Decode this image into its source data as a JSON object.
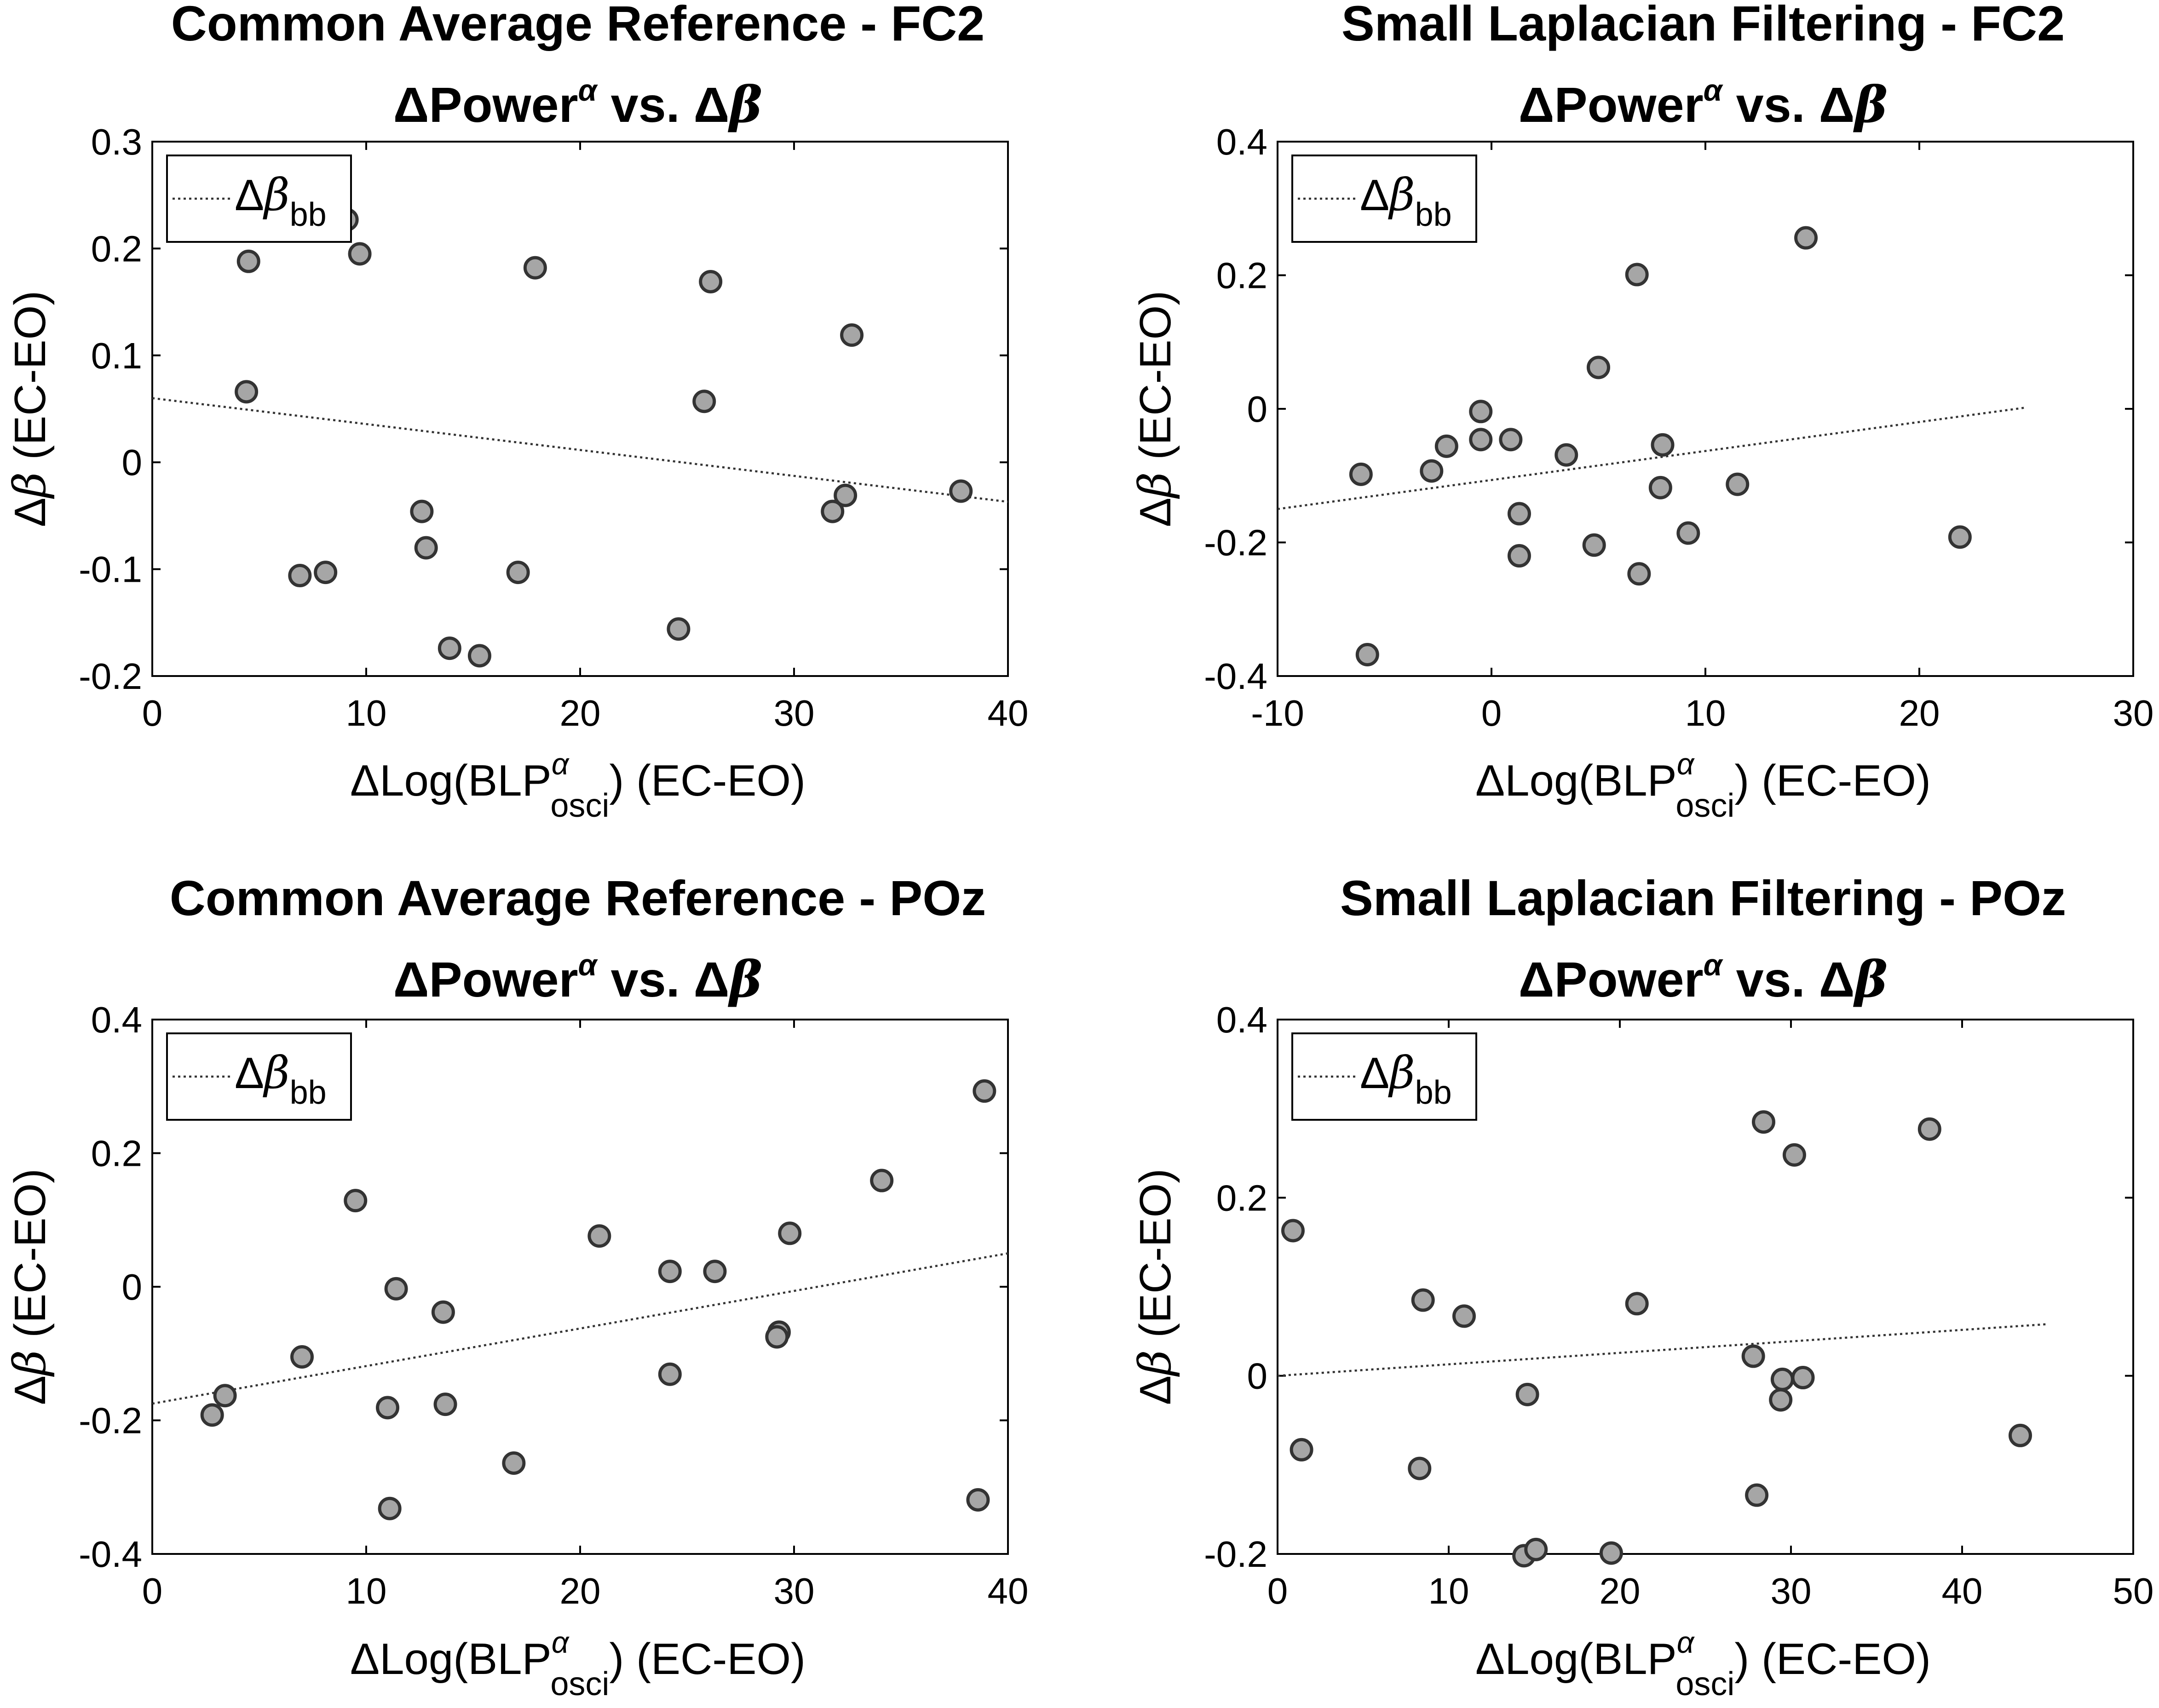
{
  "chart_data": [
    {
      "type": "scatter",
      "title_line1": "Common Average Reference - FC2",
      "title_line2": {
        "pre": "ΔPower",
        "sup": "α",
        "mid": " vs. Δ",
        "greek": "β"
      },
      "xlabel": {
        "pre": "ΔLog(BLP",
        "sup": "α",
        "sub": "osci",
        "post": ") (EC-EO)"
      },
      "ylabel": {
        "pre": "Δ",
        "greek": "β",
        "post": " (EC-EO)"
      },
      "legend": {
        "pre": "Δ",
        "greek": "β",
        "sub": "bb",
        "loc": "top-left"
      },
      "xlim": [
        0,
        40
      ],
      "ylim": [
        -0.2,
        0.3
      ],
      "xticks": [
        0,
        10,
        20,
        30,
        40
      ],
      "yticks": [
        -0.2,
        -0.1,
        0,
        0.1,
        0.2,
        0.3
      ],
      "xtick_labels": [
        "0",
        "10",
        "20",
        "30",
        "40"
      ],
      "ytick_labels": [
        "-0.2",
        "-0.1",
        "0",
        "0.1",
        "0.2",
        "0.3"
      ],
      "points": [
        [
          9.1,
          0.227
        ],
        [
          4.5,
          0.188
        ],
        [
          9.7,
          0.195
        ],
        [
          17.9,
          0.182
        ],
        [
          26.1,
          0.169
        ],
        [
          32.7,
          0.119
        ],
        [
          4.4,
          0.066
        ],
        [
          25.8,
          0.057
        ],
        [
          12.6,
          -0.046
        ],
        [
          12.8,
          -0.08
        ],
        [
          6.9,
          -0.106
        ],
        [
          8.1,
          -0.103
        ],
        [
          17.1,
          -0.103
        ],
        [
          13.9,
          -0.174
        ],
        [
          15.3,
          -0.181
        ],
        [
          24.6,
          -0.156
        ],
        [
          31.8,
          -0.046
        ],
        [
          32.4,
          -0.031
        ],
        [
          37.8,
          -0.027
        ]
      ],
      "fit_line": {
        "x": [
          0,
          40
        ],
        "y": [
          0.06,
          -0.037
        ]
      }
    },
    {
      "type": "scatter",
      "title_line1": "Small Laplacian Filtering - FC2",
      "title_line2": {
        "pre": "ΔPower",
        "sup": "α",
        "mid": " vs. Δ",
        "greek": "β"
      },
      "xlabel": {
        "pre": "ΔLog(BLP",
        "sup": "α",
        "sub": "osci",
        "post": ") (EC-EO)"
      },
      "ylabel": {
        "pre": "Δ",
        "greek": "β",
        "post": " (EC-EO)"
      },
      "legend": {
        "pre": "Δ",
        "greek": "β",
        "sub": "bb",
        "loc": "top-left"
      },
      "xlim": [
        -10,
        30
      ],
      "ylim": [
        -0.4,
        0.4
      ],
      "xticks": [
        -10,
        0,
        10,
        20,
        30
      ],
      "yticks": [
        -0.4,
        -0.2,
        0,
        0.2,
        0.4
      ],
      "xtick_labels": [
        "-10",
        "0",
        "10",
        "20",
        "30"
      ],
      "ytick_labels": [
        "-0.4",
        "-0.2",
        "0",
        "0.2",
        "0.4"
      ],
      "points": [
        [
          14.7,
          0.256
        ],
        [
          6.8,
          0.201
        ],
        [
          5.0,
          0.062
        ],
        [
          -0.5,
          -0.004
        ],
        [
          -0.5,
          -0.046
        ],
        [
          0.9,
          -0.046
        ],
        [
          -2.1,
          -0.056
        ],
        [
          -2.8,
          -0.093
        ],
        [
          -6.1,
          -0.098
        ],
        [
          3.5,
          -0.069
        ],
        [
          8.0,
          -0.054
        ],
        [
          7.9,
          -0.118
        ],
        [
          11.5,
          -0.113
        ],
        [
          1.3,
          -0.157
        ],
        [
          1.3,
          -0.22
        ],
        [
          4.8,
          -0.204
        ],
        [
          6.9,
          -0.247
        ],
        [
          9.2,
          -0.186
        ],
        [
          21.9,
          -0.192
        ],
        [
          -5.8,
          -0.368
        ]
      ],
      "fit_line": {
        "x": [
          -10,
          25
        ],
        "y": [
          -0.15,
          0.002
        ]
      }
    },
    {
      "type": "scatter",
      "title_line1": "Common Average Reference - POz",
      "title_line2": {
        "pre": "ΔPower",
        "sup": "α",
        "mid": " vs. Δ",
        "greek": "β"
      },
      "xlabel": {
        "pre": "ΔLog(BLP",
        "sup": "α",
        "sub": "osci",
        "post": ") (EC-EO)"
      },
      "ylabel": {
        "pre": "Δ",
        "greek": "β",
        "post": " (EC-EO)"
      },
      "legend": {
        "pre": "Δ",
        "greek": "β",
        "sub": "bb",
        "loc": "top-left"
      },
      "xlim": [
        0,
        40
      ],
      "ylim": [
        -0.4,
        0.4
      ],
      "xticks": [
        0,
        10,
        20,
        30,
        40
      ],
      "yticks": [
        -0.4,
        -0.2,
        0,
        0.2,
        0.4
      ],
      "xtick_labels": [
        "0",
        "10",
        "20",
        "30",
        "40"
      ],
      "ytick_labels": [
        "-0.4",
        "-0.2",
        "0",
        "0.2",
        "0.4"
      ],
      "points": [
        [
          38.9,
          0.293
        ],
        [
          9.5,
          0.129
        ],
        [
          34.1,
          0.159
        ],
        [
          20.9,
          0.076
        ],
        [
          29.8,
          0.08
        ],
        [
          24.2,
          0.023
        ],
        [
          26.3,
          0.023
        ],
        [
          11.4,
          -0.003
        ],
        [
          13.6,
          -0.038
        ],
        [
          29.3,
          -0.068
        ],
        [
          29.2,
          -0.075
        ],
        [
          7.0,
          -0.105
        ],
        [
          24.2,
          -0.131
        ],
        [
          3.4,
          -0.163
        ],
        [
          2.8,
          -0.192
        ],
        [
          11.0,
          -0.181
        ],
        [
          13.7,
          -0.176
        ],
        [
          16.9,
          -0.264
        ],
        [
          11.1,
          -0.332
        ],
        [
          38.6,
          -0.319
        ]
      ],
      "fit_line": {
        "x": [
          0,
          40
        ],
        "y": [
          -0.175,
          0.05
        ]
      }
    },
    {
      "type": "scatter",
      "title_line1": "Small Laplacian Filtering - POz",
      "title_line2": {
        "pre": "ΔPower",
        "sup": "α",
        "mid": " vs. Δ",
        "greek": "β"
      },
      "xlabel": {
        "pre": "ΔLog(BLP",
        "sup": "α",
        "sub": "osci",
        "post": ") (EC-EO)"
      },
      "ylabel": {
        "pre": "Δ",
        "greek": "β",
        "post": " (EC-EO)"
      },
      "legend": {
        "pre": "Δ",
        "greek": "β",
        "sub": "bb",
        "loc": "top-left"
      },
      "xlim": [
        0,
        50
      ],
      "ylim": [
        -0.2,
        0.4
      ],
      "xticks": [
        0,
        10,
        20,
        30,
        40,
        50
      ],
      "yticks": [
        -0.2,
        0,
        0.2,
        0.4
      ],
      "xtick_labels": [
        "0",
        "10",
        "20",
        "30",
        "40",
        "50"
      ],
      "ytick_labels": [
        "-0.2",
        "0",
        "0.2",
        "0.4"
      ],
      "points": [
        [
          28.4,
          0.285
        ],
        [
          38.1,
          0.277
        ],
        [
          30.2,
          0.248
        ],
        [
          0.9,
          0.163
        ],
        [
          8.5,
          0.085
        ],
        [
          10.9,
          0.067
        ],
        [
          21.0,
          0.081
        ],
        [
          27.8,
          0.022
        ],
        [
          29.5,
          -0.004
        ],
        [
          30.7,
          -0.002
        ],
        [
          29.4,
          -0.027
        ],
        [
          14.6,
          -0.021
        ],
        [
          1.4,
          -0.083
        ],
        [
          43.4,
          -0.067
        ],
        [
          8.3,
          -0.104
        ],
        [
          28.0,
          -0.134
        ],
        [
          14.4,
          -0.202
        ],
        [
          15.1,
          -0.195
        ],
        [
          19.5,
          -0.199
        ]
      ],
      "fit_line": {
        "x": [
          0,
          45
        ],
        "y": [
          0.0,
          0.058
        ]
      }
    }
  ]
}
